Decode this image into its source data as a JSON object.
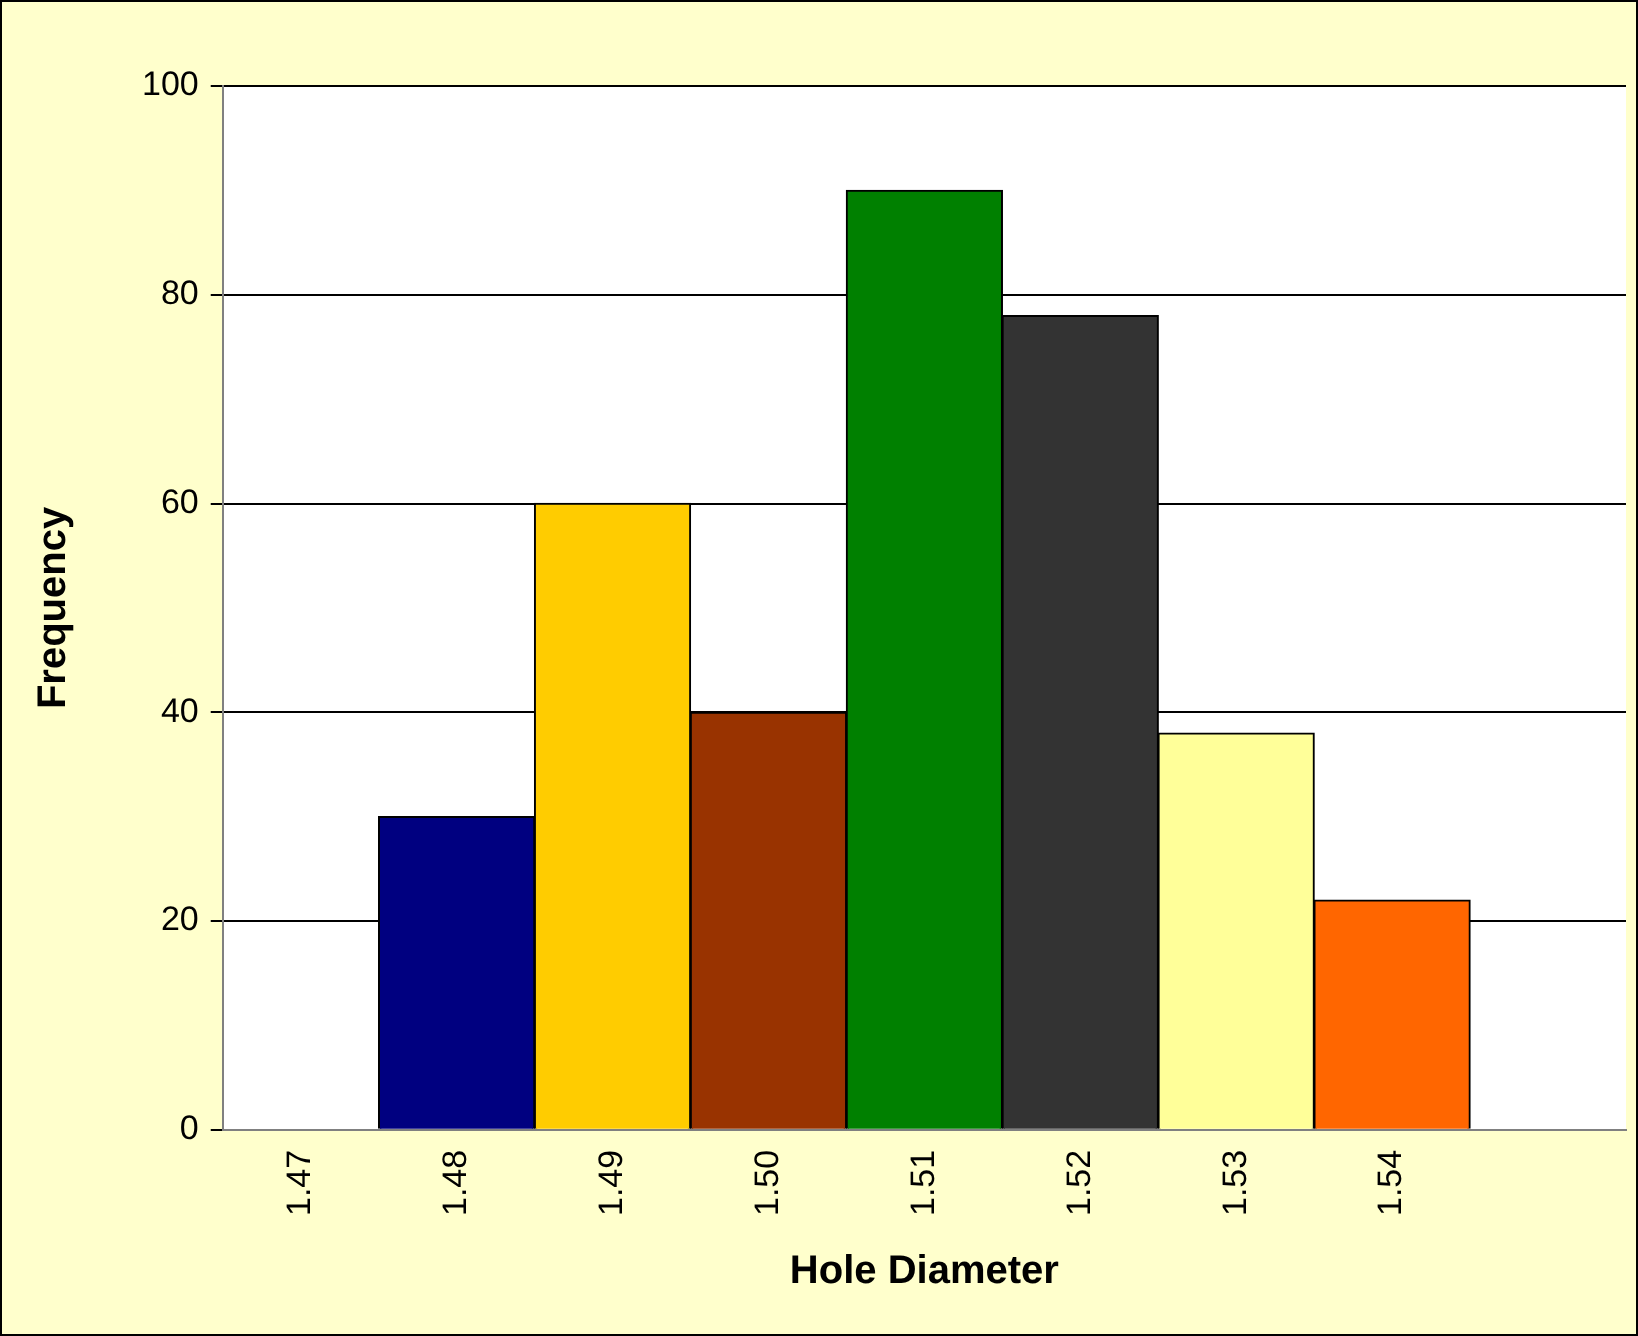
{
  "chart_data": {
    "type": "bar",
    "xlabel": "Hole Diameter",
    "ylabel": "Frequency",
    "categories": [
      "1.47",
      "1.48",
      "1.49",
      "1.50",
      "1.51",
      "1.52",
      "1.53",
      "1.54",
      null
    ],
    "values": [
      0,
      30,
      60,
      40,
      90,
      78,
      38,
      22,
      null
    ],
    "colors": [
      null,
      "#000080",
      "#ffcc00",
      "#993300",
      "#008000",
      "#333333",
      "#ffff99",
      "#ff6600",
      null
    ],
    "ylim": [
      0,
      100
    ],
    "yticks": [
      0,
      20,
      40,
      60,
      80,
      100
    ],
    "grid": "y",
    "legend": false
  }
}
